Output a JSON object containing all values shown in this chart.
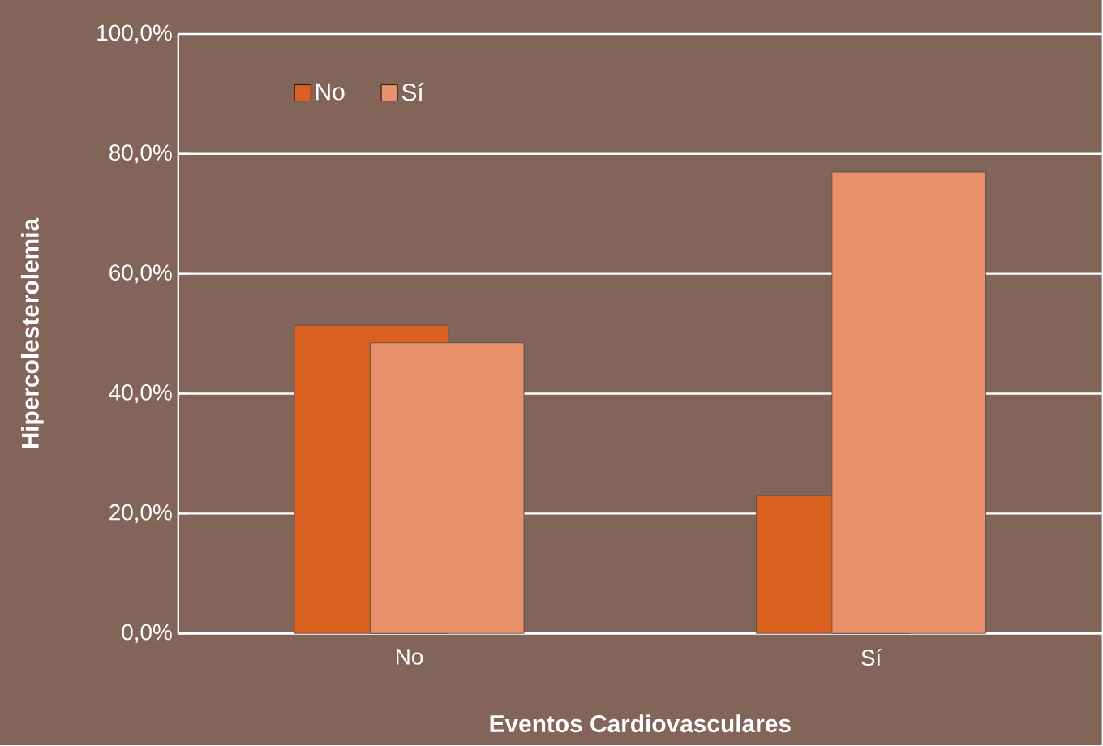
{
  "chart_data": {
    "type": "bar",
    "xlabel": "Eventos Cardiovasculares",
    "ylabel": "Hipercolesterolemia",
    "categories": [
      "No",
      "Sí"
    ],
    "series": [
      {
        "name": "No",
        "color": "#d9601f",
        "values": [
          51.4,
          23.0
        ]
      },
      {
        "name": "Sí",
        "color": "#e8906a",
        "values": [
          48.5,
          77.0
        ]
      }
    ],
    "ylim": [
      0,
      100
    ],
    "yticks": [
      {
        "value": 0,
        "label": "0,0%"
      },
      {
        "value": 20,
        "label": "20,0%"
      },
      {
        "value": 40,
        "label": "40,0%"
      },
      {
        "value": 60,
        "label": "60,0%"
      },
      {
        "value": 80,
        "label": "80,0%"
      },
      {
        "value": 100,
        "label": "100,0%"
      }
    ],
    "grid": "y",
    "legend": "top left"
  }
}
